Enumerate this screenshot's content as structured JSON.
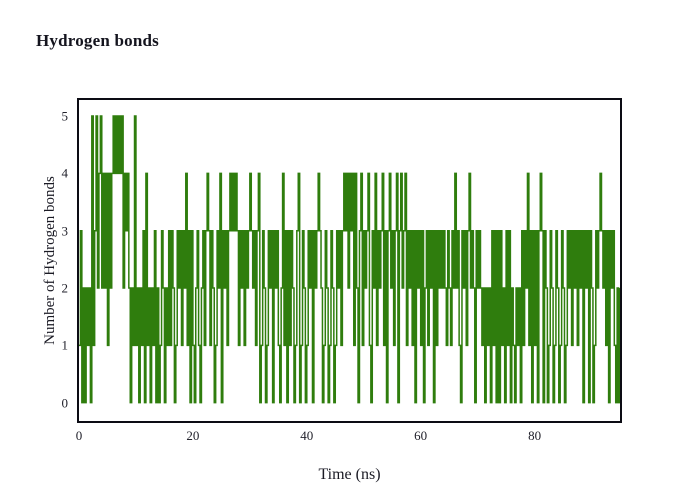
{
  "header": {
    "title": "Hydrogen bonds"
  },
  "colors": {
    "line": "#2f7d0d",
    "frame": "#0c0c14",
    "text": "#16161f",
    "background": "#ffffff"
  },
  "chart_data": {
    "type": "line",
    "subtype": "step",
    "title": "Hydrogen bonds",
    "xlabel": "Time (ns)",
    "ylabel": "Number of Hydrogen bonds",
    "x_ticks": [
      0,
      20,
      40,
      60,
      80
    ],
    "y_ticks": [
      0,
      1,
      2,
      3,
      4,
      5
    ],
    "xlim": [
      0,
      95
    ],
    "ylim": [
      -0.32,
      5.28
    ],
    "grid": false,
    "legend_position": "none",
    "line_color": "#2f7d0d",
    "series": [
      {
        "name": "hydrogen_bonds",
        "t_start": 0,
        "t_step": 0.25,
        "values": [
          1,
          3,
          0,
          2,
          0,
          2,
          1,
          2,
          0,
          5,
          1,
          3,
          5,
          2,
          4,
          5,
          2,
          4,
          2,
          4,
          1,
          4,
          2,
          4,
          5,
          4,
          5,
          4,
          5,
          4,
          5,
          2,
          4,
          3,
          4,
          2,
          0,
          2,
          1,
          5,
          1,
          2,
          0,
          2,
          1,
          3,
          0,
          4,
          1,
          2,
          0,
          2,
          1,
          3,
          0,
          2,
          0,
          1,
          3,
          2,
          0,
          2,
          1,
          3,
          1,
          3,
          2,
          0,
          1,
          3,
          2,
          3,
          1,
          3,
          2,
          4,
          1,
          3,
          0,
          3,
          1,
          0,
          2,
          3,
          1,
          0,
          2,
          3,
          1,
          3,
          4,
          3,
          1,
          3,
          2,
          0,
          1,
          3,
          2,
          4,
          0,
          3,
          2,
          3,
          1,
          3,
          4,
          3,
          4,
          3,
          4,
          3,
          1,
          3,
          2,
          3,
          1,
          3,
          2,
          3,
          4,
          3,
          2,
          3,
          1,
          3,
          4,
          0,
          1,
          3,
          2,
          0,
          1,
          3,
          2,
          3,
          0,
          3,
          2,
          3,
          1,
          0,
          2,
          4,
          1,
          3,
          0,
          3,
          1,
          3,
          2,
          0,
          1,
          3,
          4,
          0,
          1,
          3,
          2,
          0,
          1,
          3,
          2,
          3,
          0,
          3,
          2,
          3,
          4,
          3,
          2,
          0,
          1,
          3,
          2,
          0,
          1,
          3,
          2,
          0,
          1,
          3,
          2,
          3,
          1,
          3,
          4,
          3,
          4,
          2,
          4,
          3,
          4,
          1,
          4,
          2,
          0,
          3,
          4,
          1,
          3,
          2,
          3,
          4,
          1,
          0,
          3,
          2,
          4,
          1,
          3,
          2,
          3,
          4,
          1,
          3,
          0,
          3,
          4,
          2,
          3,
          1,
          3,
          4,
          0,
          3,
          4,
          2,
          3,
          4,
          1,
          3,
          2,
          3,
          1,
          3,
          0,
          3,
          2,
          3,
          1,
          3,
          0,
          2,
          3,
          1,
          3,
          2,
          3,
          0,
          3,
          1,
          3,
          2,
          3,
          2,
          3,
          2,
          1,
          3,
          2,
          1,
          3,
          2,
          4,
          2,
          3,
          1,
          0,
          3,
          2,
          3,
          1,
          3,
          4,
          2,
          3,
          2,
          0,
          3,
          2,
          3,
          2,
          1,
          2,
          0,
          2,
          1,
          2,
          0,
          3,
          1,
          3,
          0,
          3,
          0,
          3,
          1,
          2,
          0,
          3,
          1,
          3,
          0,
          2,
          1,
          0,
          2,
          1,
          2,
          0,
          3,
          1,
          3,
          2,
          4,
          1,
          3,
          0,
          3,
          1,
          3,
          0,
          3,
          4,
          3,
          0,
          3,
          2,
          0,
          1,
          3,
          2,
          0,
          1,
          3,
          2,
          0,
          1,
          3,
          2,
          0,
          1,
          3,
          2,
          3,
          1,
          3,
          2,
          3,
          1,
          3,
          2,
          3,
          0,
          3,
          2,
          3,
          0,
          3,
          2,
          0,
          1,
          3,
          2,
          3,
          4,
          3,
          2,
          3,
          1,
          3,
          0,
          3,
          2,
          3,
          1,
          0,
          2,
          0,
          2
        ]
      }
    ]
  }
}
